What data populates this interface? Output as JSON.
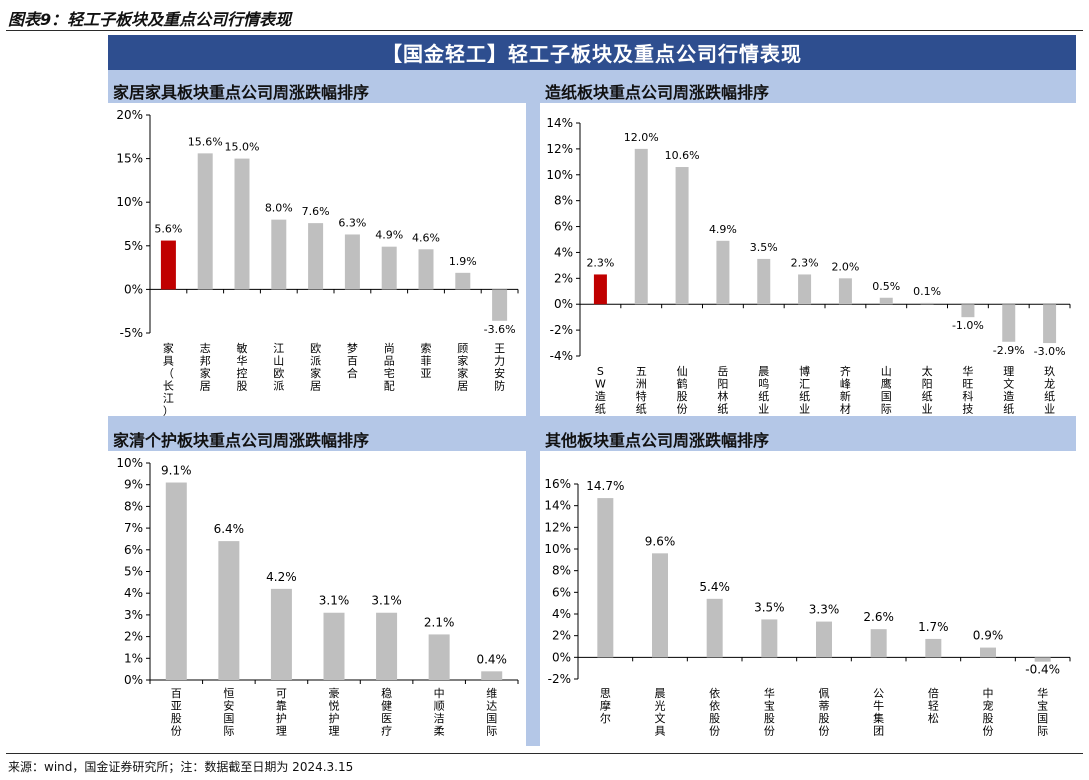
{
  "figure_title": "图表9：轻工子板块及重点公司行情表现",
  "banner": "【国金轻工】轻工子板块及重点公司行情表现",
  "source": "来源：wind，国金证券研究所；注：数据截至日期为 2024.3.15",
  "colors": {
    "banner": "#2e4e8f",
    "frame": "#b4c7e7",
    "bar": "#bfbfbf",
    "highlight": "#c00000"
  },
  "chart_data": [
    {
      "type": "bar",
      "title": "家居家具板块重点公司周涨跌幅排序",
      "categories": [
        "家具（长江）",
        "志邦家居",
        "敏华控股",
        "江山欧派",
        "欧派家居",
        "梦百合",
        "尚品宅配",
        "索菲亚",
        "顾家家居",
        "王力安防"
      ],
      "values": [
        5.6,
        15.6,
        15.0,
        8.0,
        7.6,
        6.3,
        4.9,
        4.6,
        1.9,
        -3.6
      ],
      "labels": [
        "5.6%",
        "15.6%",
        "15.0%",
        "8.0%",
        "7.6%",
        "6.3%",
        "4.9%",
        "4.6%",
        "1.9%",
        "-3.6%"
      ],
      "highlight_index": 0,
      "yticks": [
        -5,
        0,
        5,
        10,
        15,
        20
      ],
      "ylim": [
        -5,
        20
      ]
    },
    {
      "type": "bar",
      "title": "造纸板块重点公司周涨跌幅排序",
      "categories": [
        "SW造纸Ⅱ",
        "五洲特纸",
        "仙鹤股份",
        "岳阳林纸",
        "晨鸣纸业",
        "博汇纸业",
        "齐峰新材",
        "山鹰国际",
        "太阳纸业",
        "华旺科技",
        "理文造纸",
        "玖龙纸业"
      ],
      "values": [
        2.3,
        12.0,
        10.6,
        4.9,
        3.5,
        2.3,
        2.0,
        0.5,
        0.1,
        -1.0,
        -2.9,
        -3.0
      ],
      "labels": [
        "2.3%",
        "12.0%",
        "10.6%",
        "4.9%",
        "3.5%",
        "2.3%",
        "2.0%",
        "0.5%",
        "0.1%",
        "-1.0%",
        "-2.9%",
        "-3.0%"
      ],
      "highlight_index": 0,
      "yticks": [
        -4,
        -2,
        0,
        2,
        4,
        6,
        8,
        10,
        12,
        14
      ],
      "ylim": [
        -4,
        14
      ]
    },
    {
      "type": "bar",
      "title": "家清个护板块重点公司周涨跌幅排序",
      "categories": [
        "百亚股份",
        "恒安国际",
        "可靠护理",
        "豪悦护理",
        "稳健医疗",
        "中顺洁柔",
        "维达国际"
      ],
      "values": [
        9.1,
        6.4,
        4.2,
        3.1,
        3.1,
        2.1,
        0.4
      ],
      "labels": [
        "9.1%",
        "6.4%",
        "4.2%",
        "3.1%",
        "3.1%",
        "2.1%",
        "0.4%"
      ],
      "highlight_index": -1,
      "yticks": [
        0,
        1,
        2,
        3,
        4,
        5,
        6,
        7,
        8,
        9,
        10
      ],
      "ylim": [
        0,
        10
      ]
    },
    {
      "type": "bar",
      "title": "其他板块重点公司周涨跌幅排序",
      "categories": [
        "思摩尔",
        "晨光文具",
        "依依股份",
        "华宝股份",
        "佩蒂股份",
        "公牛集团",
        "倍轻松",
        "中宠股份",
        "华宝国际"
      ],
      "values": [
        14.7,
        9.6,
        5.4,
        3.5,
        3.3,
        2.6,
        1.7,
        0.9,
        -0.4
      ],
      "labels": [
        "14.7%",
        "9.6%",
        "5.4%",
        "3.5%",
        "3.3%",
        "2.6%",
        "1.7%",
        "0.9%",
        "-0.4%"
      ],
      "highlight_index": -1,
      "yticks": [
        -2,
        0,
        2,
        4,
        6,
        8,
        10,
        12,
        14,
        16
      ],
      "ylim": [
        -2,
        16
      ]
    }
  ]
}
